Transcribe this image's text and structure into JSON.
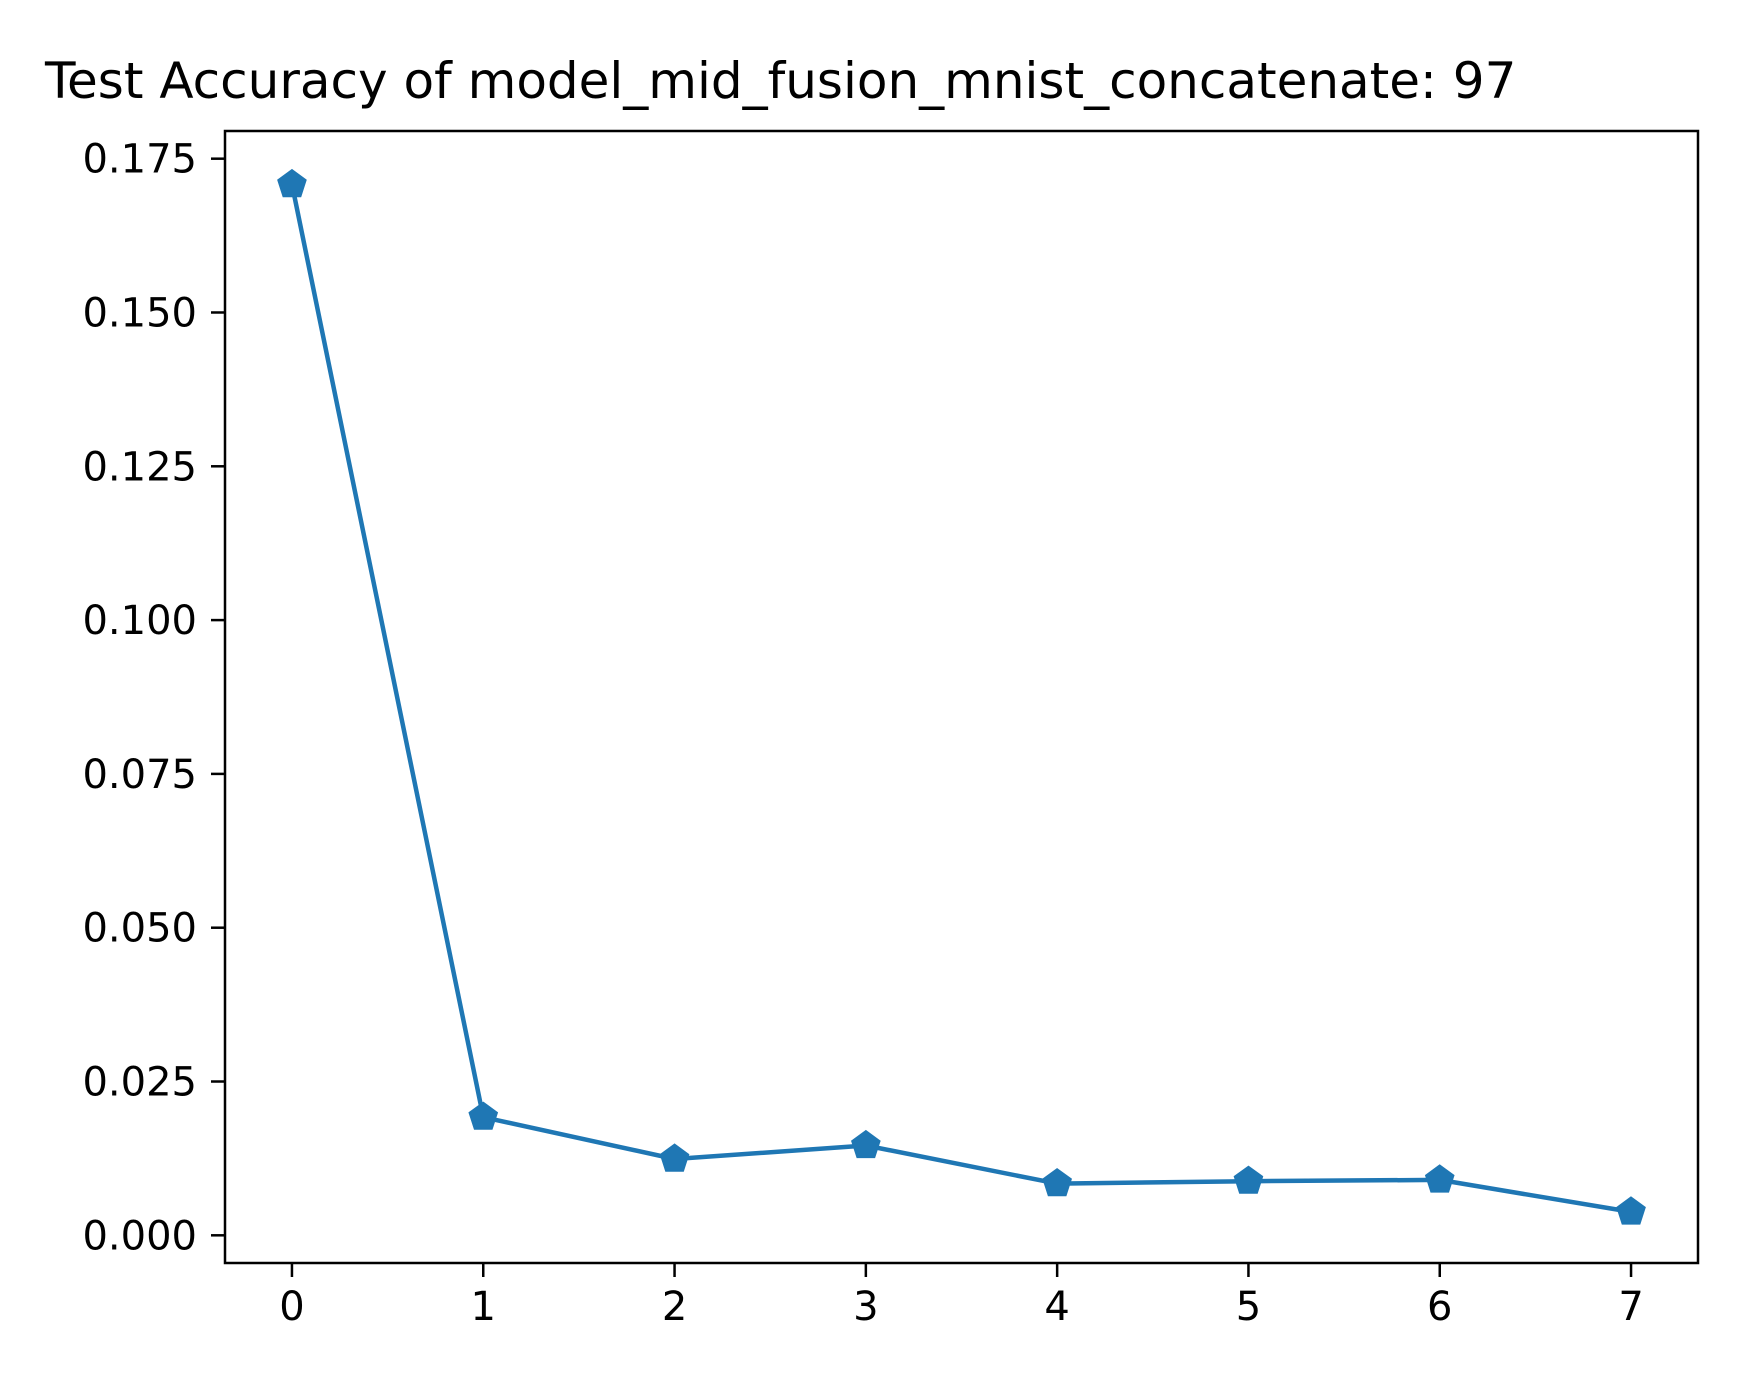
{
  "chart_data": {
    "type": "line",
    "title": "Test Accuracy of model_mid_fusion_mnist_concatenate: 97",
    "xlabel": "",
    "ylabel": "",
    "x": [
      0,
      1,
      2,
      3,
      4,
      5,
      6,
      7
    ],
    "series": [
      {
        "values": [
          0.1708,
          0.0192,
          0.0124,
          0.0146,
          0.0084,
          0.0088,
          0.009,
          0.0038
        ],
        "color": "#1f77b4",
        "marker": "pentagon"
      }
    ],
    "xticks": [
      "0",
      "1",
      "2",
      "3",
      "4",
      "5",
      "6",
      "7"
    ],
    "yticks": [
      "0.000",
      "0.025",
      "0.050",
      "0.075",
      "0.100",
      "0.125",
      "0.150",
      "0.175"
    ],
    "xlim": [
      -0.35,
      7.35
    ],
    "ylim": [
      -0.0045,
      0.1795
    ],
    "grid": false,
    "legend": "none"
  }
}
